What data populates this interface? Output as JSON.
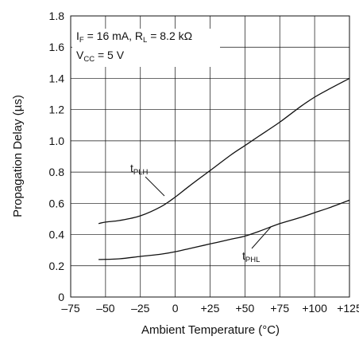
{
  "chart_data": {
    "type": "line",
    "xlabel": "Ambient Temperature (°C)",
    "ylabel": "Propagation Delay (µs)",
    "xlim": [
      -75,
      125
    ],
    "ylim": [
      0,
      1.8
    ],
    "x_ticks": [
      -75,
      -50,
      -25,
      0,
      25,
      50,
      75,
      100,
      125
    ],
    "x_tick_labels": [
      "–75",
      "–50",
      "–25",
      "0",
      "+25",
      "+50",
      "+75",
      "+100",
      "+125"
    ],
    "y_ticks": [
      0,
      0.2,
      0.4,
      0.6,
      0.8,
      1.0,
      1.2,
      1.4,
      1.6,
      1.8
    ],
    "y_tick_labels": [
      "0",
      "0.2",
      "0.4",
      "0.6",
      "0.8",
      "1.0",
      "1.2",
      "1.4",
      "1.6",
      "1.8"
    ],
    "grid": true,
    "conditions": {
      "line1": {
        "i_main": "I",
        "i_sub": "F",
        "i_rest": " = 16 mA, R",
        "r_sub": "L",
        "r_rest": " = 8.2 kΩ"
      },
      "line2": {
        "v_main": "V",
        "v_sub": "CC",
        "v_rest": " = 5 V"
      }
    },
    "series": [
      {
        "label_main": "t",
        "label_sub": "PLH",
        "x": [
          -55,
          -50,
          -40,
          -25,
          -10,
          0,
          10,
          25,
          40,
          50,
          60,
          75,
          90,
          100,
          110,
          125
        ],
        "values": [
          0.47,
          0.48,
          0.49,
          0.52,
          0.58,
          0.64,
          0.71,
          0.81,
          0.91,
          0.97,
          1.03,
          1.12,
          1.22,
          1.28,
          1.33,
          1.4
        ]
      },
      {
        "label_main": "t",
        "label_sub": "PHL",
        "x": [
          -55,
          -40,
          -25,
          -10,
          0,
          10,
          25,
          40,
          50,
          60,
          75,
          90,
          100,
          110,
          125
        ],
        "values": [
          0.24,
          0.245,
          0.26,
          0.275,
          0.29,
          0.31,
          0.34,
          0.37,
          0.39,
          0.42,
          0.47,
          0.51,
          0.54,
          0.57,
          0.62
        ]
      }
    ]
  }
}
